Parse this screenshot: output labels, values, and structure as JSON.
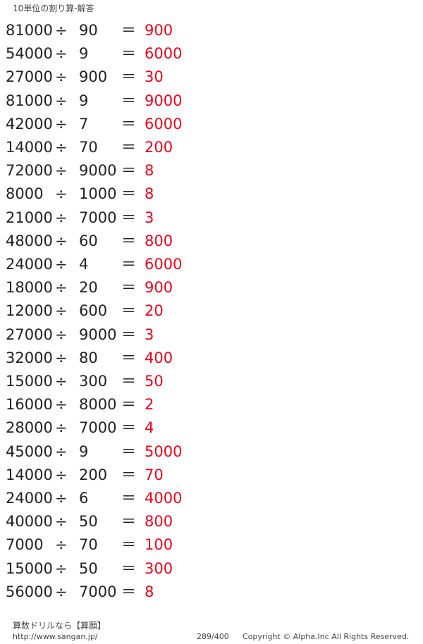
{
  "header": {
    "title": "10単位の割り算-解答"
  },
  "operator": "÷",
  "equals": "＝",
  "colors": {
    "answer": "#e8001c",
    "text": "#222222"
  },
  "problems": [
    {
      "a": "81000",
      "b": "90",
      "ans": "900"
    },
    {
      "a": "54000",
      "b": "9",
      "ans": "6000"
    },
    {
      "a": "27000",
      "b": "900",
      "ans": "30"
    },
    {
      "a": "81000",
      "b": "9",
      "ans": "9000"
    },
    {
      "a": "42000",
      "b": "7",
      "ans": "6000"
    },
    {
      "a": "14000",
      "b": "70",
      "ans": "200"
    },
    {
      "a": "72000",
      "b": "9000",
      "ans": "8"
    },
    {
      "a": "8000",
      "b": "1000",
      "ans": "8"
    },
    {
      "a": "21000",
      "b": "7000",
      "ans": "3"
    },
    {
      "a": "48000",
      "b": "60",
      "ans": "800"
    },
    {
      "a": "24000",
      "b": "4",
      "ans": "6000"
    },
    {
      "a": "18000",
      "b": "20",
      "ans": "900"
    },
    {
      "a": "12000",
      "b": "600",
      "ans": "20"
    },
    {
      "a": "27000",
      "b": "9000",
      "ans": "3"
    },
    {
      "a": "32000",
      "b": "80",
      "ans": "400"
    },
    {
      "a": "15000",
      "b": "300",
      "ans": "50"
    },
    {
      "a": "16000",
      "b": "8000",
      "ans": "2"
    },
    {
      "a": "28000",
      "b": "7000",
      "ans": "4"
    },
    {
      "a": "45000",
      "b": "9",
      "ans": "5000"
    },
    {
      "a": "14000",
      "b": "200",
      "ans": "70"
    },
    {
      "a": "24000",
      "b": "6",
      "ans": "4000"
    },
    {
      "a": "40000",
      "b": "50",
      "ans": "800"
    },
    {
      "a": "7000",
      "b": "70",
      "ans": "100"
    },
    {
      "a": "15000",
      "b": "50",
      "ans": "300"
    },
    {
      "a": "56000",
      "b": "7000",
      "ans": "8"
    }
  ],
  "footer": {
    "brand": "算数ドリルなら【算願】",
    "url": "http://www.sangan.jp/",
    "page": "289/400",
    "copyright": "Copyright © Alpha.Inc All Rights Reserved."
  }
}
